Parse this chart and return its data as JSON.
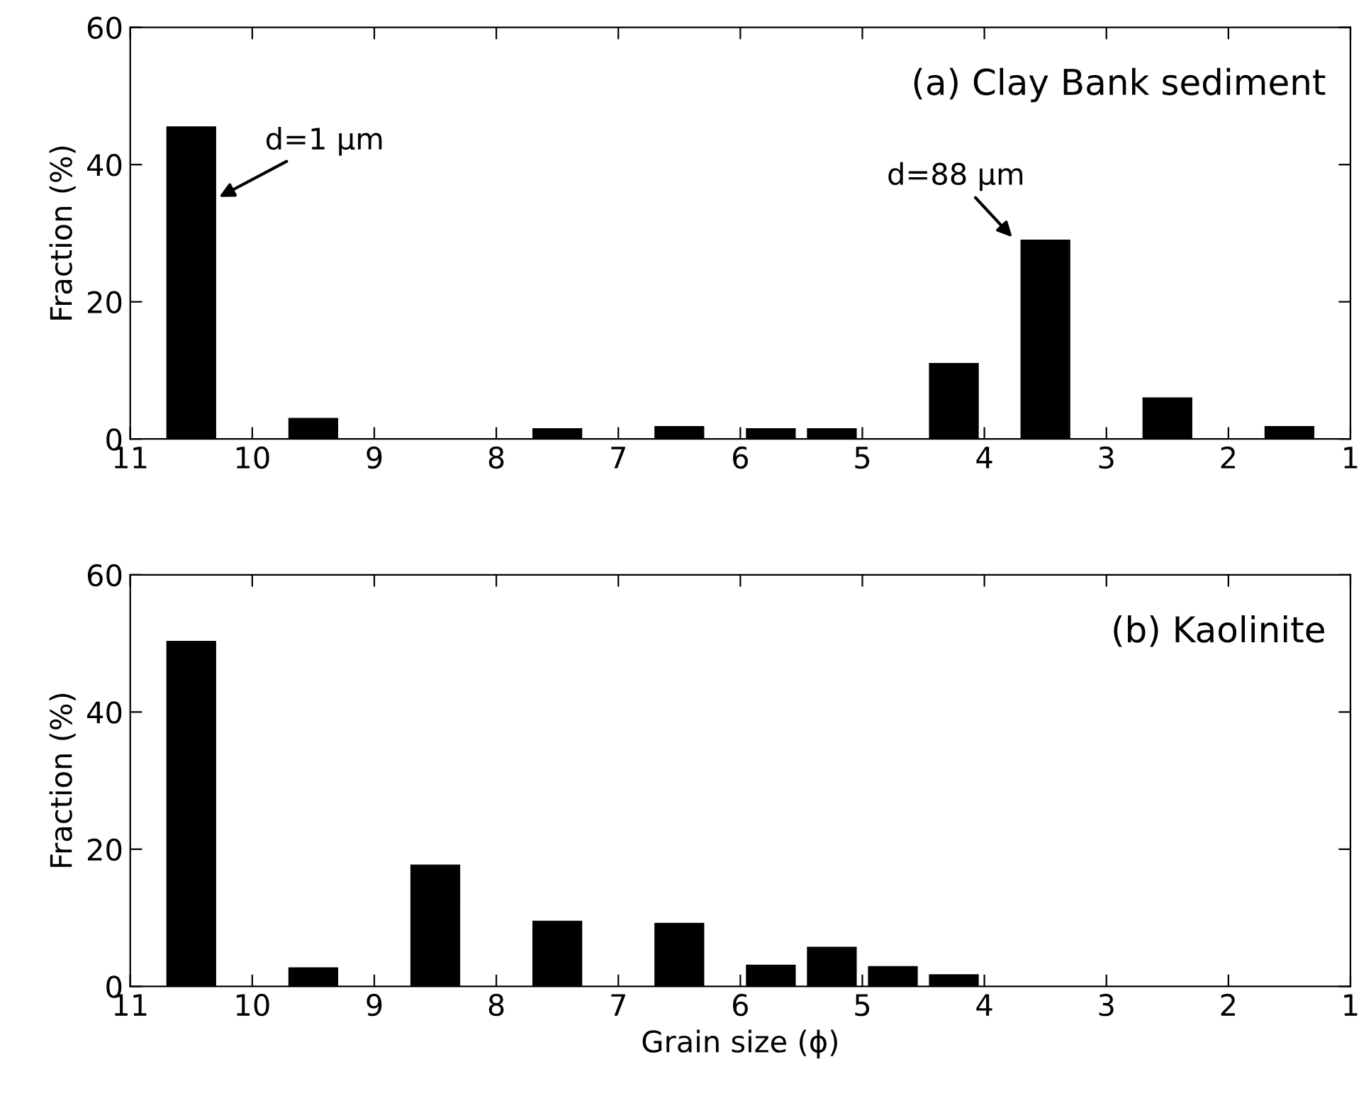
{
  "chart_data": [
    {
      "type": "bar",
      "title": "(a) Clay Bank sediment",
      "ylabel": "Fraction (%)",
      "x": [
        10.5,
        9.5,
        7.5,
        6.5,
        5.75,
        5.25,
        4.25,
        3.5,
        2.5,
        1.5
      ],
      "values": [
        45.5,
        3,
        1.5,
        1.8,
        1.5,
        1.5,
        11,
        29,
        6,
        1.8
      ],
      "color": "#000000",
      "xlim": [
        11,
        1
      ],
      "xticks": [
        11,
        10,
        9,
        8,
        7,
        6,
        5,
        4,
        3,
        2,
        1
      ],
      "ylim": [
        0,
        60
      ],
      "yticks": [
        0,
        20,
        40,
        60
      ],
      "grid": false,
      "legend": false,
      "annotations": [
        {
          "text": "d=1 μm",
          "x": 10.3,
          "y": 35
        },
        {
          "text": "d=88 μm",
          "x": 3.75,
          "y": 29
        }
      ]
    },
    {
      "type": "bar",
      "title": "(b) Kaolinite",
      "ylabel": "Fraction (%)",
      "xlabel": "Grain size (ϕ)",
      "x": [
        10.5,
        9.5,
        8.5,
        7.5,
        6.5,
        5.75,
        5.25,
        4.75,
        4.25
      ],
      "values": [
        50.3,
        2.7,
        17.7,
        9.5,
        9.2,
        3.1,
        5.7,
        2.9,
        1.7
      ],
      "color": "#000000",
      "xlim": [
        11,
        1
      ],
      "xticks": [
        11,
        10,
        9,
        8,
        7,
        6,
        5,
        4,
        3,
        2,
        1
      ],
      "ylim": [
        0,
        60
      ],
      "yticks": [
        0,
        20,
        40,
        60
      ],
      "grid": false,
      "legend": false
    }
  ]
}
